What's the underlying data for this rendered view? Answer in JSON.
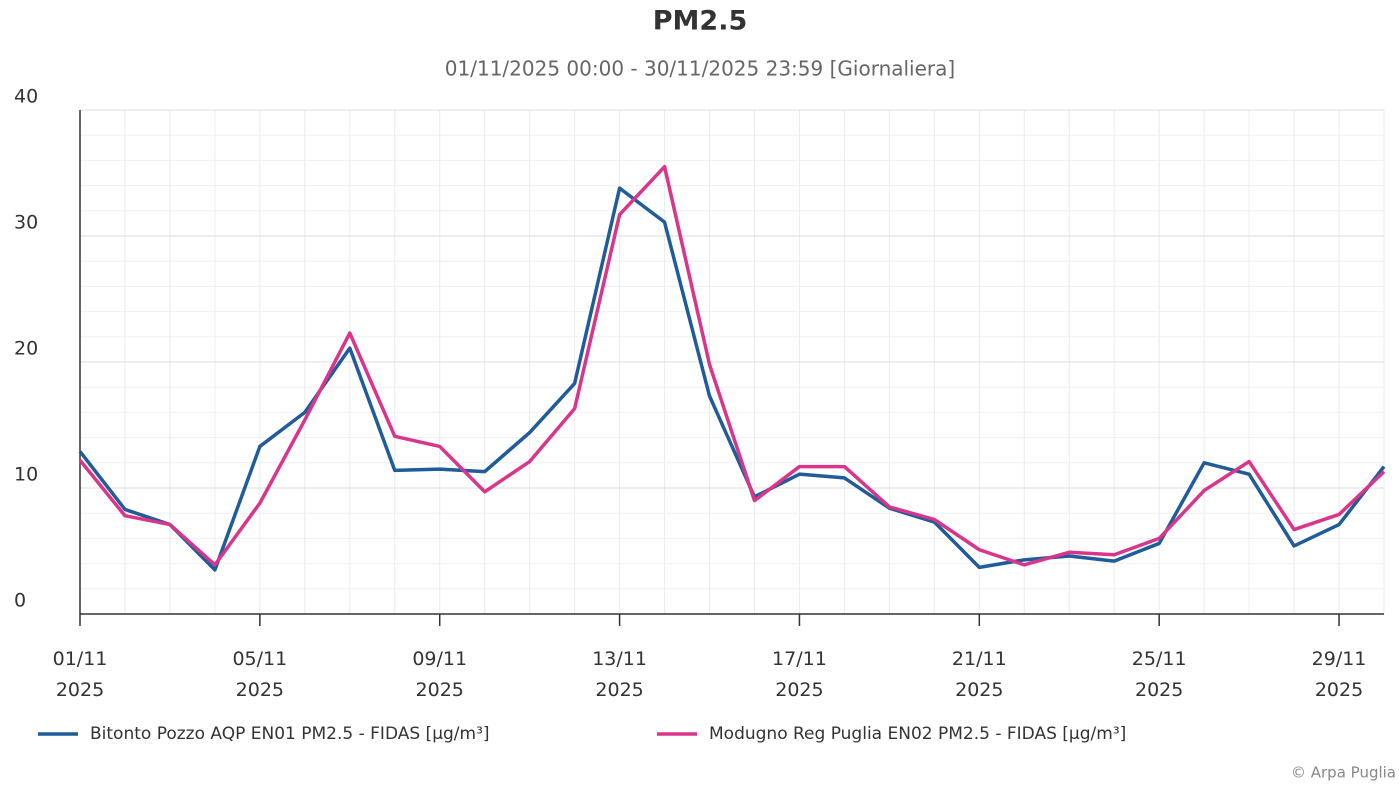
{
  "chart_data": {
    "type": "line",
    "title": "PM2.5",
    "subtitle": "01/11/2025 00:00 - 30/11/2025 23:59 [Giornaliera]",
    "credits": "© Arpa Puglia",
    "categories": [
      "01/11\n2025",
      null,
      null,
      null,
      "05/11\n2025",
      null,
      null,
      null,
      "09/11\n2025",
      null,
      null,
      null,
      "13/11\n2025",
      null,
      null,
      null,
      "17/11\n2025",
      null,
      null,
      null,
      "21/11\n2025",
      null,
      null,
      null,
      "25/11\n2025",
      null,
      null,
      null,
      "29/11\n2025",
      null
    ],
    "series": [
      {
        "name": "Bitonto Pozzo AQP EN01 PM2.5 - FIDAS [µg/m³]",
        "color": "#1f5c99",
        "values": [
          12.9,
          8.3,
          7.1,
          3.5,
          13.3,
          16.0,
          21.1,
          11.4,
          11.5,
          11.3,
          14.4,
          18.3,
          33.8,
          31.1,
          17.3,
          9.3,
          11.1,
          10.8,
          8.4,
          7.3,
          3.7,
          4.3,
          4.6,
          4.2,
          5.6,
          12.0,
          11.1,
          5.4,
          7.1,
          11.7
        ]
      },
      {
        "name": "Modugno Reg Puglia EN02 PM2.5 - FIDAS [µg/m³]",
        "color": "#d9368b",
        "values": [
          12.2,
          7.8,
          7.1,
          3.9,
          8.8,
          15.4,
          22.3,
          14.1,
          13.3,
          9.7,
          12.1,
          16.3,
          31.7,
          35.5,
          19.8,
          9.0,
          11.7,
          11.7,
          8.5,
          7.5,
          5.1,
          3.9,
          4.9,
          4.7,
          6.0,
          9.8,
          12.1,
          6.7,
          7.9,
          11.3
        ]
      }
    ],
    "ylim": [
      0,
      40
    ],
    "yticks": [
      0,
      10,
      20,
      30,
      40
    ],
    "minor_ytick_interval": 2,
    "grid": true,
    "legend": "bottom"
  }
}
